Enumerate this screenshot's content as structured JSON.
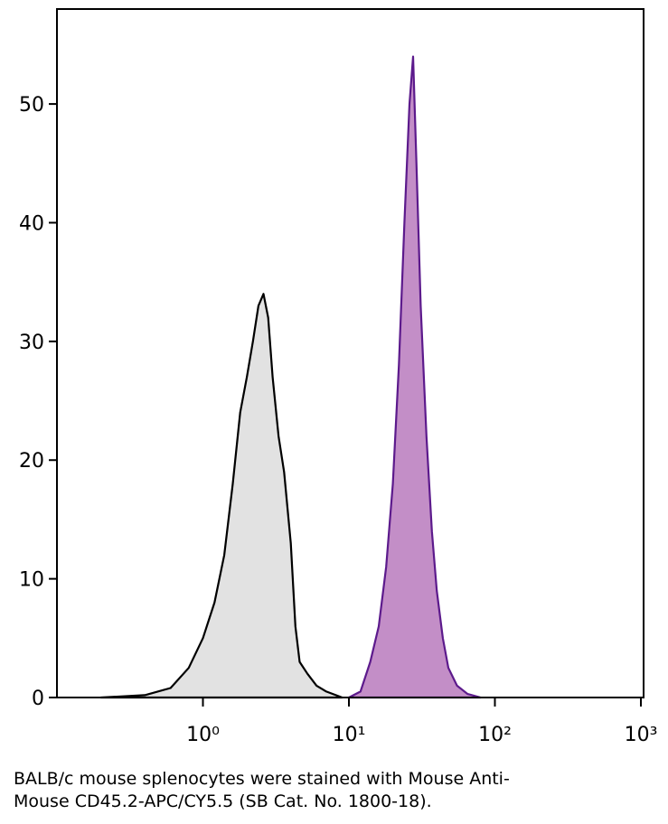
{
  "chart_data": {
    "type": "histogram-overlay",
    "xscale": "log",
    "xlim": [
      0.1,
      1000
    ],
    "ylim": [
      0,
      58
    ],
    "xticks": [
      {
        "value": 1,
        "label": "10⁰"
      },
      {
        "value": 10,
        "label": "10¹"
      },
      {
        "value": 100,
        "label": "10²"
      },
      {
        "value": 1000,
        "label": "10³"
      }
    ],
    "yticks": [
      0,
      10,
      20,
      30,
      40,
      50
    ],
    "series": [
      {
        "color": "#000000",
        "fill": "#e0e0e0",
        "x": [
          0.2,
          0.4,
          0.6,
          0.8,
          1.0,
          1.2,
          1.4,
          1.6,
          1.8,
          2.0,
          2.2,
          2.4,
          2.6,
          2.8,
          3.0,
          3.3,
          3.6,
          4.0,
          4.3,
          4.6,
          5.2,
          6,
          7,
          9
        ],
        "values": [
          0,
          0.2,
          0.8,
          2.5,
          5,
          8,
          12,
          18,
          24,
          27,
          30,
          33,
          34,
          32,
          27,
          22,
          19,
          13,
          6,
          3,
          2,
          1,
          0.5,
          0
        ]
      },
      {
        "color": "#5c1a8c",
        "fill": "#c088c4",
        "x": [
          10,
          12,
          14,
          16,
          18,
          20,
          22,
          24,
          26,
          27.5,
          29,
          31,
          34,
          37,
          40,
          44,
          48,
          55,
          65,
          80
        ],
        "values": [
          0,
          0.5,
          3,
          6,
          11,
          18,
          28,
          40,
          50,
          54,
          45,
          33,
          22,
          14,
          9,
          5,
          2.5,
          1,
          0.3,
          0
        ]
      }
    ]
  },
  "caption": [
    "BALB/c mouse splenocytes were stained with Mouse Anti-",
    "Mouse CD45.2-APC/CY5.5 (SB Cat. No. 1800-18)."
  ]
}
